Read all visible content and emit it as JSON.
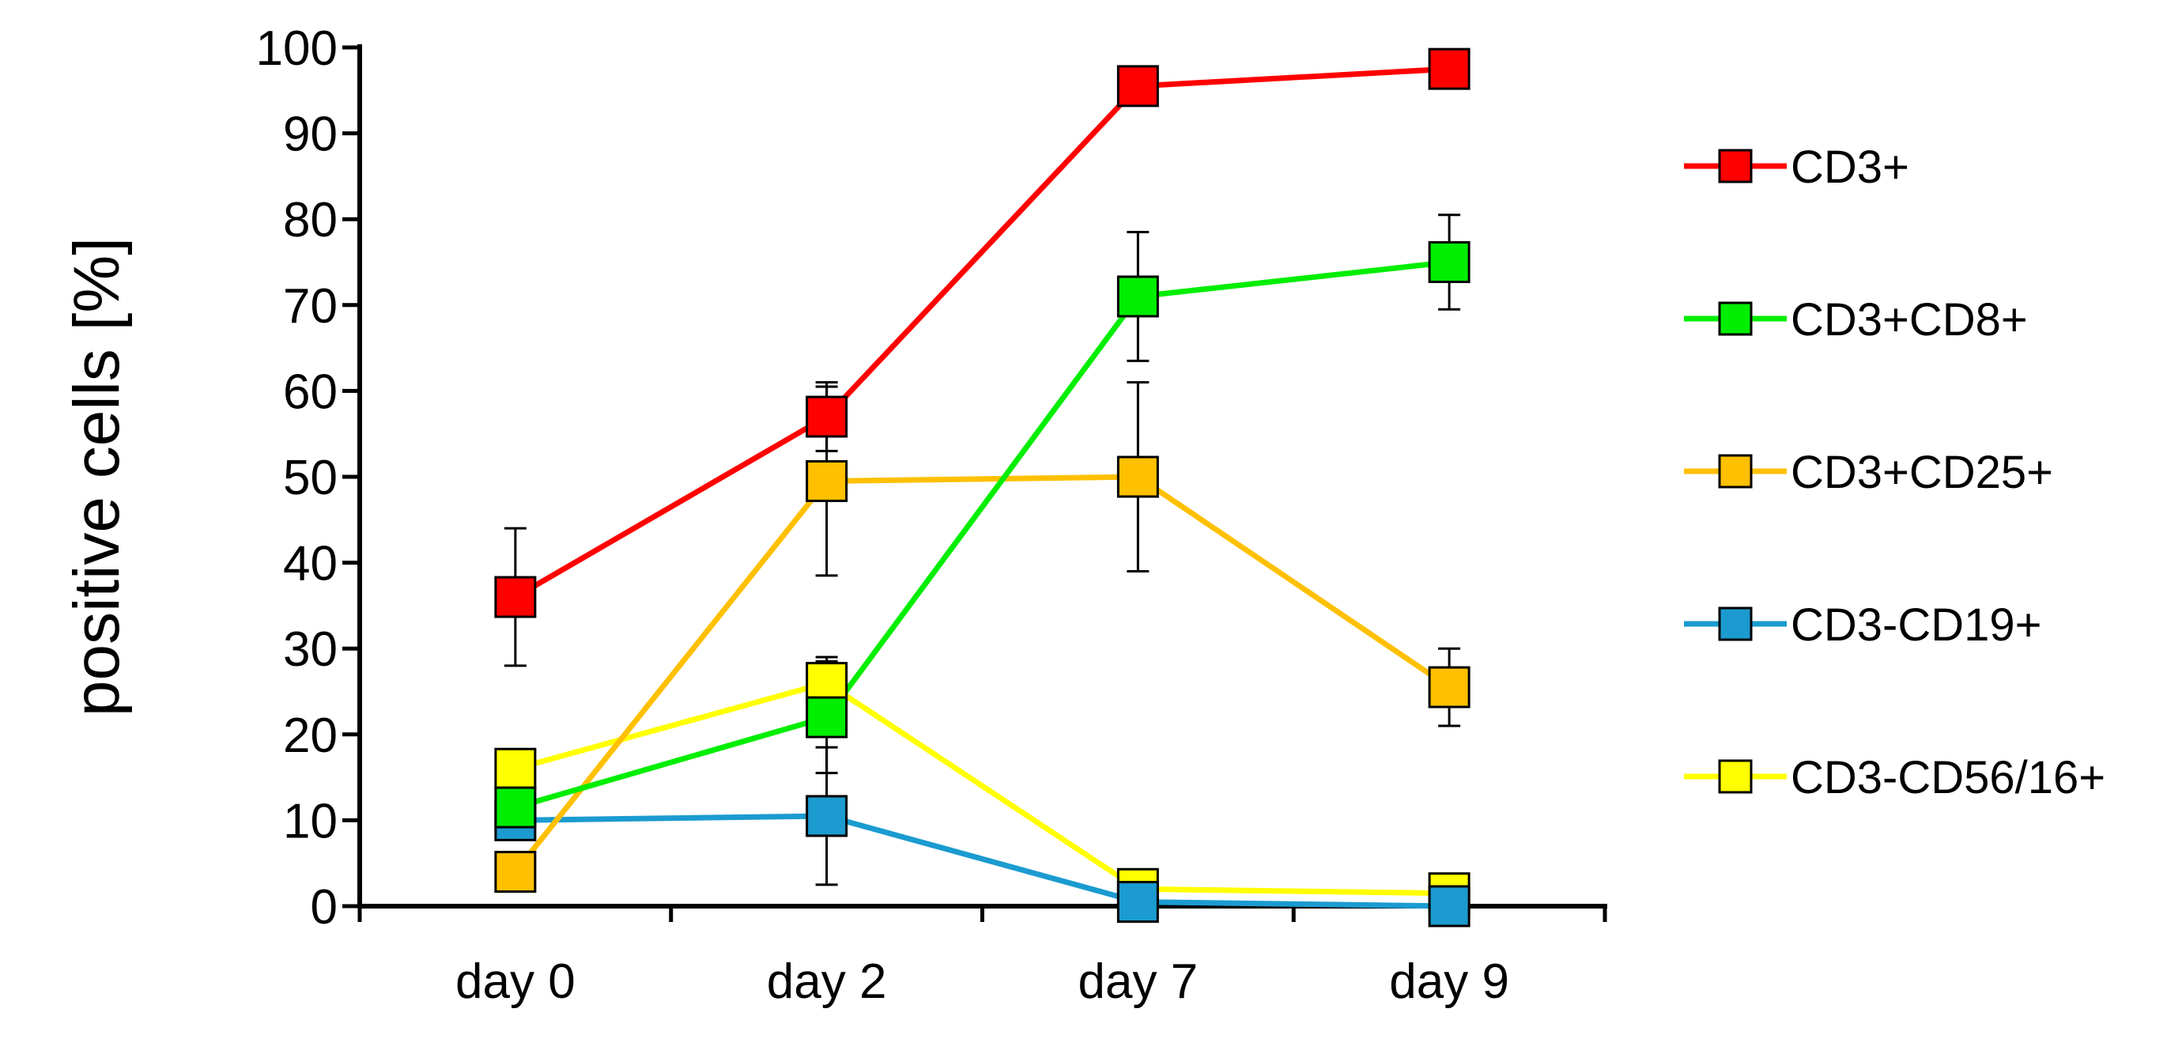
{
  "chart_data": {
    "type": "line",
    "xlabel": "",
    "ylabel": "positive cells [%]",
    "ylim": [
      0,
      100
    ],
    "yticks": [
      "0",
      "10",
      "20",
      "30",
      "40",
      "50",
      "60",
      "70",
      "80",
      "90",
      "100"
    ],
    "categories": [
      "day 0",
      "day 2",
      "day 7",
      "day 9"
    ],
    "grid": false,
    "legend_position": "right",
    "series": [
      {
        "name": "CD3+",
        "color": "#ff0000",
        "values": [
          36,
          57,
          95.5,
          97.5
        ],
        "err": [
          8,
          4,
          0,
          0
        ]
      },
      {
        "name": "CD3+CD8+",
        "color": "#00ee00",
        "values": [
          11.5,
          22,
          71,
          75
        ],
        "err": [
          0,
          6.5,
          7.5,
          5.5
        ]
      },
      {
        "name": "CD3+CD25+",
        "color": "#ffc000",
        "values": [
          4,
          49.5,
          50,
          25.5
        ],
        "err": [
          0,
          11,
          11,
          4.5
        ]
      },
      {
        "name": "CD3-CD19+",
        "color": "#1b9bd0",
        "values": [
          10,
          10.5,
          0.5,
          0
        ],
        "err": [
          0,
          8,
          0,
          0
        ]
      },
      {
        "name": "CD3-CD56/16+",
        "color": "#ffff00",
        "values": [
          16,
          26,
          2,
          1.5
        ],
        "err": [
          0,
          3,
          0,
          0
        ]
      }
    ]
  }
}
